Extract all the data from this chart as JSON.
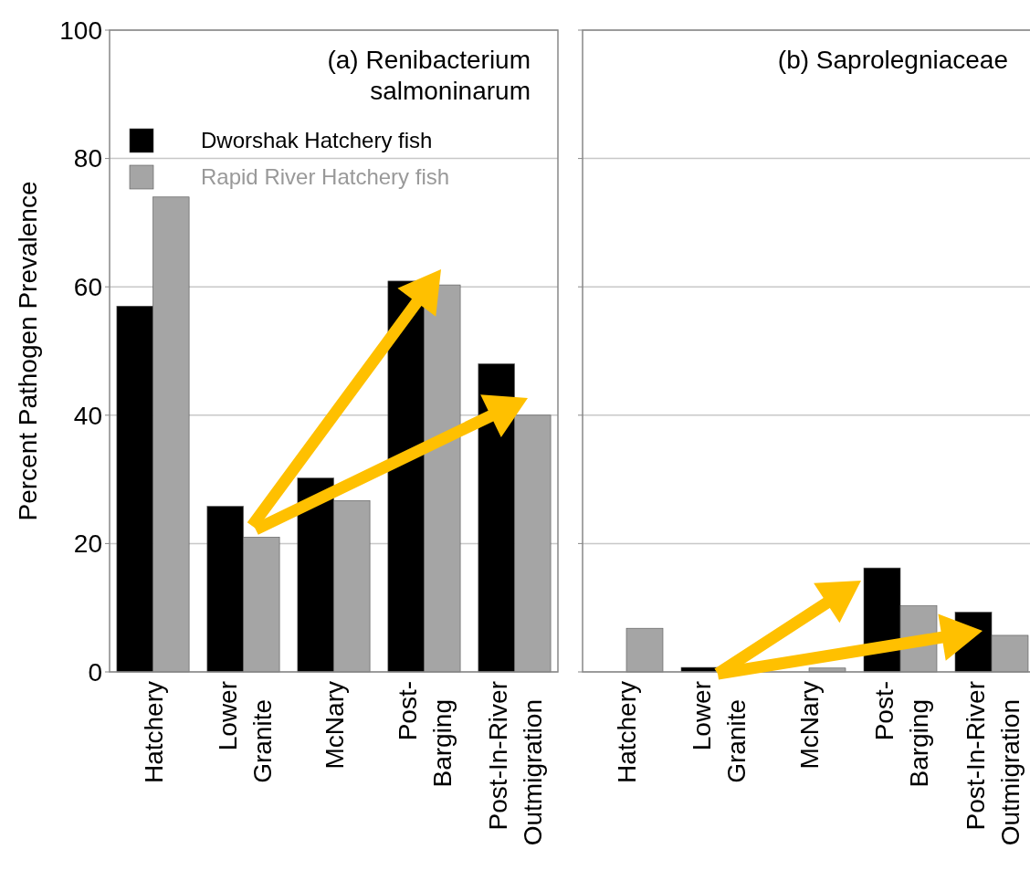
{
  "chart_data": [
    {
      "type": "bar",
      "title": "(a) Renibacterium salmoninarum",
      "ylabel": "Percent Pathogen Prevalence",
      "categories": [
        "Hatchery",
        "Lower Granite",
        "McNary",
        "Post-Barging",
        "Post-In-River Outmigration"
      ],
      "series": [
        {
          "name": "Dworshak Hatchery fish",
          "color": "#000000",
          "values": [
            57,
            25.8,
            30.2,
            60.9,
            48
          ]
        },
        {
          "name": "Rapid River Hatchery fish",
          "color": "#a5a5a5",
          "values": [
            74,
            21,
            26.7,
            60.3,
            40
          ]
        }
      ],
      "ylim": [
        0,
        100
      ],
      "yticks": [
        0,
        20,
        40,
        60,
        80,
        100
      ],
      "grid": "y",
      "legend": "top left"
    },
    {
      "type": "bar",
      "title": "(b) Saprolegniaceae",
      "categories": [
        "Hatchery",
        "Lower Granite",
        "McNary",
        "Post-Barging",
        "Post-In-River Outmigration"
      ],
      "series": [
        {
          "color": "#000000",
          "values": [
            0,
            0.7,
            null,
            16.2,
            9.3
          ]
        },
        {
          "color": "#a5a5a5",
          "values": [
            6.8,
            0,
            0.6,
            10.3,
            5.7
          ]
        }
      ],
      "ylim": [
        0,
        100
      ],
      "yticks": [
        0,
        20,
        40,
        60,
        80,
        100
      ],
      "grid": "y",
      "tick_labels": "x"
    }
  ]
}
